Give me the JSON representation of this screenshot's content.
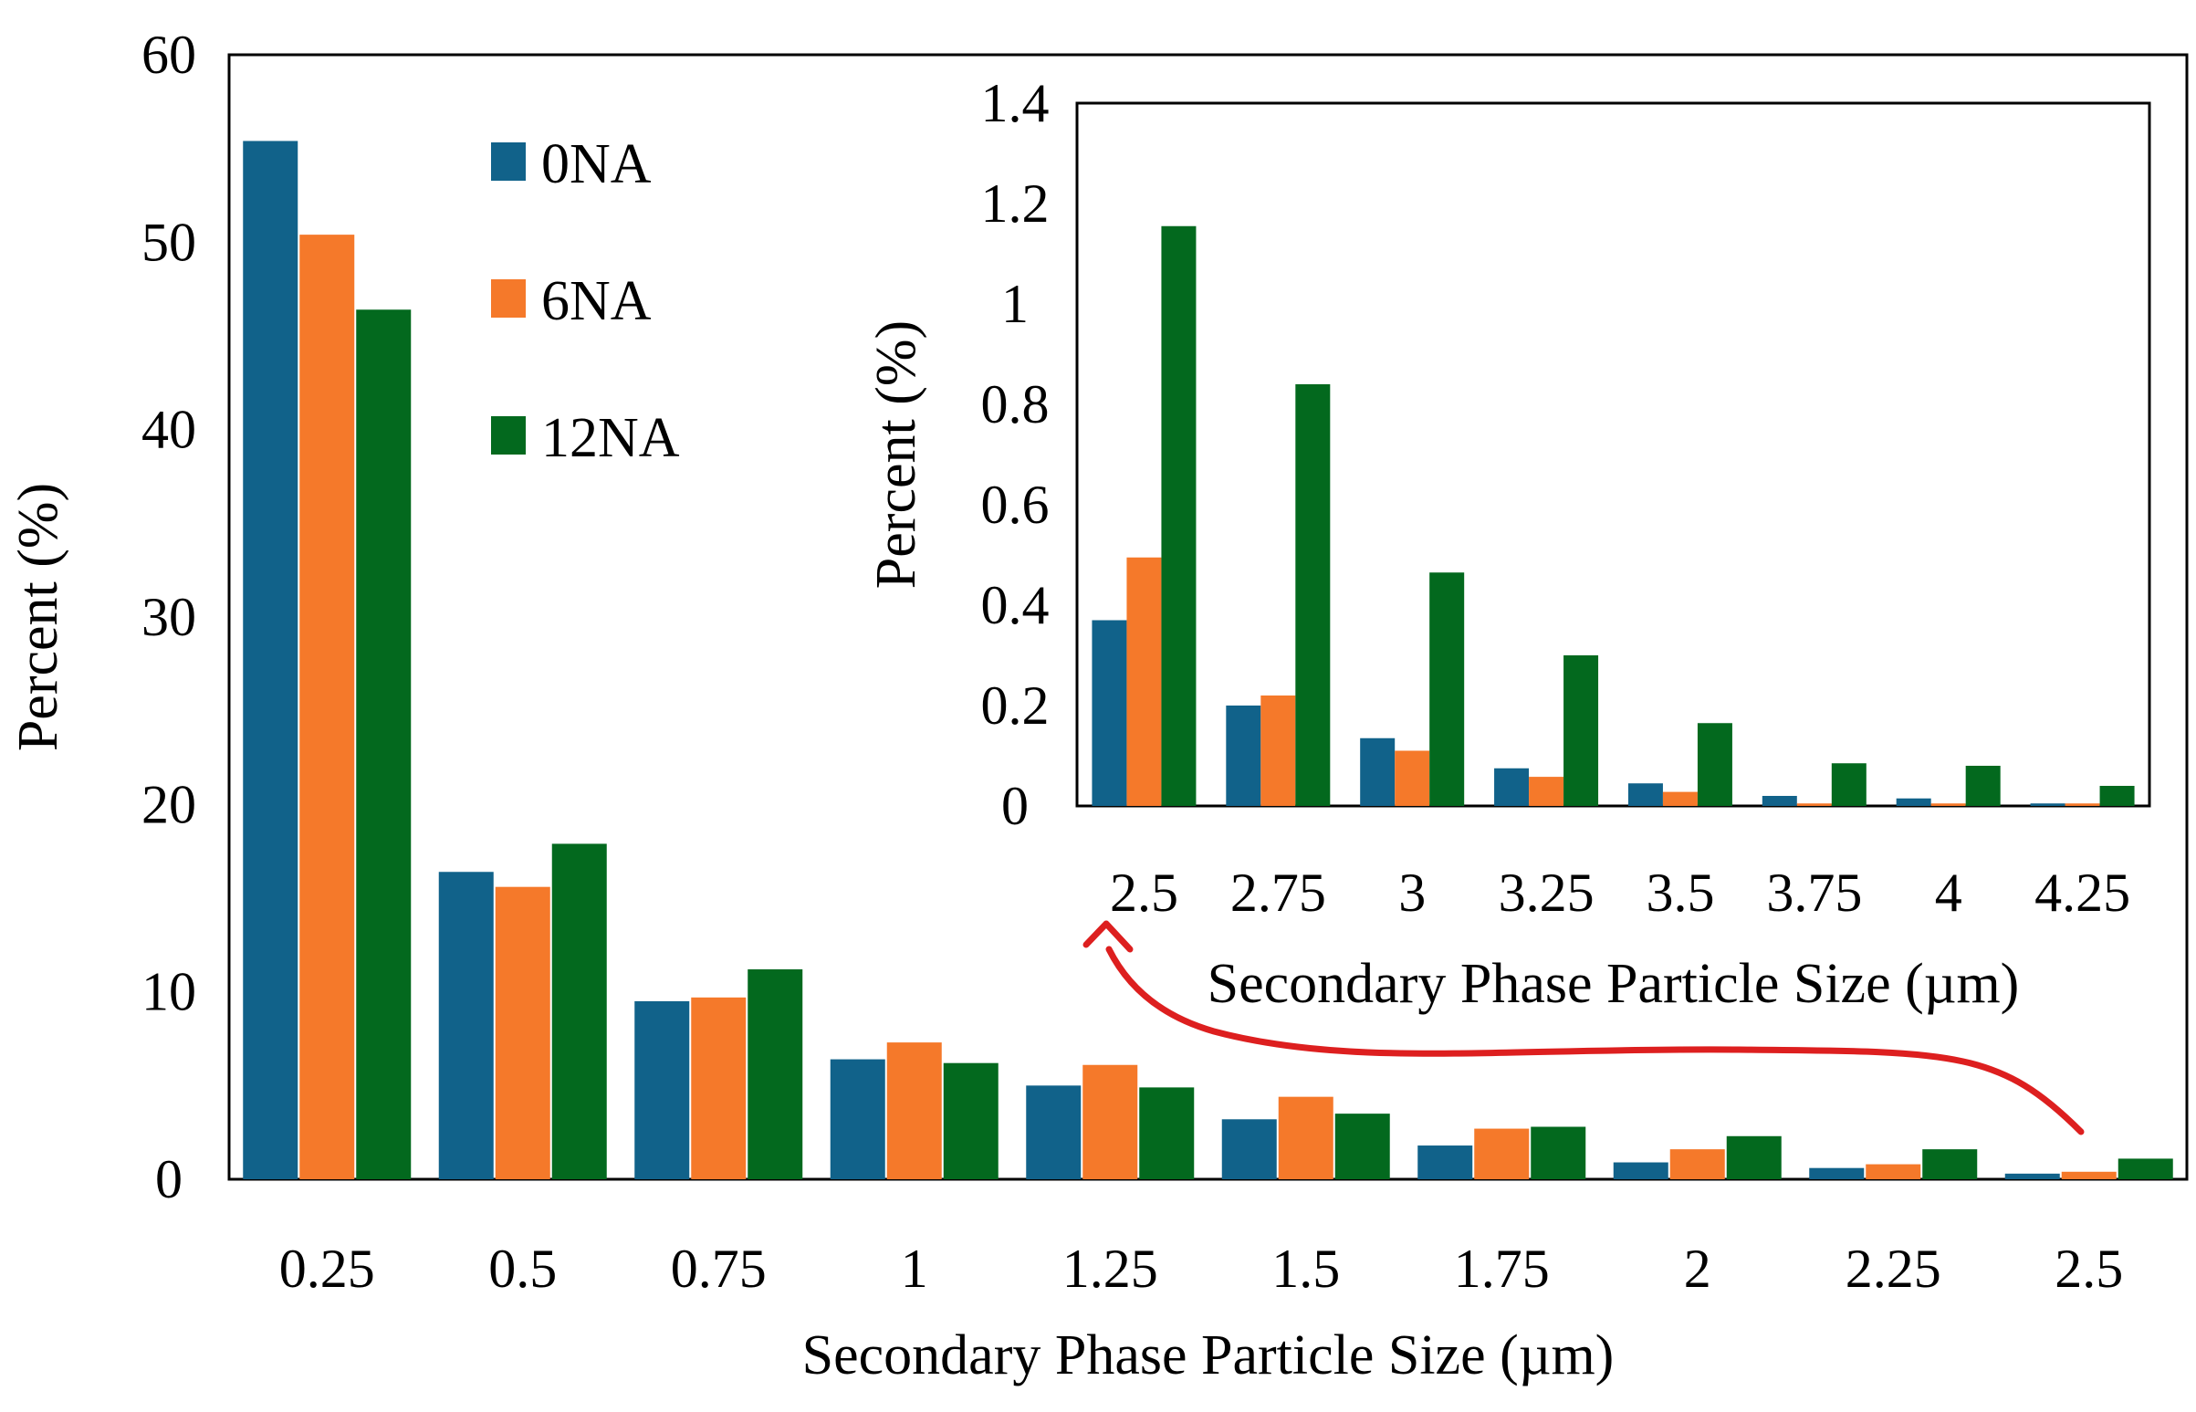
{
  "chart_data": [
    {
      "id": "main",
      "type": "bar",
      "title": "",
      "xlabel": "Secondary Phase Particle Size (µm)",
      "ylabel": "Percent (%)",
      "ylim": [
        0,
        60
      ],
      "yticks": [
        "0",
        "10",
        "20",
        "30",
        "40",
        "50",
        "60"
      ],
      "categories": [
        "0.25",
        "0.5",
        "0.75",
        "1",
        "1.25",
        "1.5",
        "1.75",
        "2",
        "2.25",
        "2.5"
      ],
      "series": [
        {
          "name": "0NA",
          "color": "#11628a",
          "values": [
            55.4,
            16.4,
            9.5,
            6.4,
            5.0,
            3.2,
            1.8,
            0.9,
            0.6,
            0.3
          ]
        },
        {
          "name": "6NA",
          "color": "#f5792a",
          "values": [
            50.4,
            15.6,
            9.7,
            7.3,
            6.1,
            4.4,
            2.7,
            1.6,
            0.8,
            0.4
          ]
        },
        {
          "name": "12NA",
          "color": "#03691e",
          "values": [
            46.4,
            17.9,
            11.2,
            6.2,
            4.9,
            3.5,
            2.8,
            2.3,
            1.6,
            1.1
          ]
        }
      ],
      "legend": {
        "placement": "top-left-inside",
        "entries": [
          "0NA",
          "6NA",
          "12NA"
        ]
      }
    },
    {
      "id": "inset",
      "type": "bar",
      "title": "",
      "xlabel": "Secondary Phase Particle Size (µm)",
      "ylabel": "Percent (%)",
      "ylim": [
        0,
        1.4
      ],
      "yticks": [
        "0",
        "0.2",
        "0.4",
        "0.6",
        "0.8",
        "1",
        "1.2",
        "1.4"
      ],
      "categories": [
        "2.5",
        "2.75",
        "3",
        "3.25",
        "3.5",
        "3.75",
        "4",
        "4.25"
      ],
      "series": [
        {
          "name": "0NA",
          "color": "#11628a",
          "values": [
            0.37,
            0.2,
            0.135,
            0.075,
            0.045,
            0.02,
            0.015,
            0.005
          ]
        },
        {
          "name": "6NA",
          "color": "#f5792a",
          "values": [
            0.495,
            0.22,
            0.11,
            0.058,
            0.028,
            0.005,
            0.005,
            0.005
          ]
        },
        {
          "name": "12NA",
          "color": "#03691e",
          "values": [
            1.155,
            0.84,
            0.465,
            0.3,
            0.165,
            0.085,
            0.08,
            0.04
          ]
        }
      ]
    }
  ],
  "annotation": {
    "type": "arrow",
    "from": "main last category 2.5",
    "to": "inset first category 2.5",
    "color": "#dd1f1f"
  }
}
